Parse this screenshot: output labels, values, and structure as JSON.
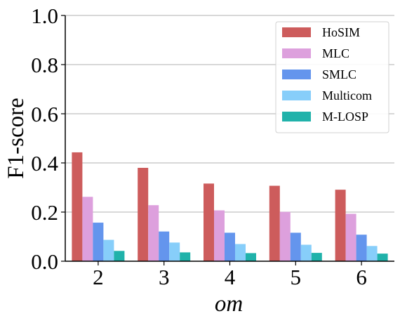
{
  "chart_data": {
    "type": "bar",
    "title": "",
    "xlabel": "om",
    "ylabel": "F1-score",
    "categories": [
      "2",
      "3",
      "4",
      "5",
      "6"
    ],
    "ylim": [
      0,
      1.0
    ],
    "yticks": [
      "0.0",
      "0.2",
      "0.4",
      "0.6",
      "0.8",
      "1.0"
    ],
    "grid": "y",
    "legend_position": "top-right",
    "series": [
      {
        "name": "HoSIM",
        "color": "#cd5c5c",
        "values": [
          0.443,
          0.38,
          0.316,
          0.307,
          0.291
        ]
      },
      {
        "name": "MLC",
        "color": "#dda0dd",
        "values": [
          0.262,
          0.228,
          0.207,
          0.201,
          0.193
        ]
      },
      {
        "name": "SMLC",
        "color": "#6495ed",
        "values": [
          0.157,
          0.121,
          0.116,
          0.116,
          0.108
        ]
      },
      {
        "name": "Multicom",
        "color": "#87cefa",
        "values": [
          0.087,
          0.076,
          0.07,
          0.067,
          0.062
        ]
      },
      {
        "name": "M-LOSP",
        "color": "#20b2aa",
        "values": [
          0.042,
          0.036,
          0.033,
          0.034,
          0.031
        ]
      }
    ]
  }
}
